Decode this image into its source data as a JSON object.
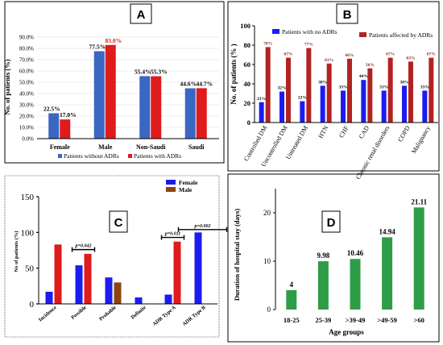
{
  "chart_data": [
    {
      "panel": "A",
      "type": "bar",
      "ylabel": "No. of patients (%)",
      "yticks": [
        "0.0%",
        "10.0%",
        "20.0%",
        "30.0%",
        "40.0%",
        "50.0%",
        "60.0%",
        "70.0%",
        "80.0%",
        "90.0%"
      ],
      "ylim": [
        0,
        90
      ],
      "categories": [
        "Female",
        "Male",
        "Non-Saudi",
        "Saudi"
      ],
      "series": [
        {
          "name": "Patients without ADRs",
          "color": "#3a66c4",
          "values": [
            22.5,
            77.5,
            55.4,
            44.6
          ],
          "labels": [
            "22.5%",
            "77.5%",
            "55.4%",
            "44.6%"
          ]
        },
        {
          "name": "Patients with ADRs",
          "color": "#e01b1b",
          "values": [
            17.0,
            83.0,
            55.3,
            44.7
          ],
          "labels": [
            "17.0%",
            "83.0%",
            "55.3%",
            "44.7%"
          ]
        }
      ],
      "legend_position": "bottom"
    },
    {
      "panel": "B",
      "type": "bar",
      "ylabel": "No. of patients (% )",
      "yticks": [
        "0",
        "20",
        "40",
        "60",
        "80",
        "100"
      ],
      "ylim": [
        0,
        100
      ],
      "categories": [
        "Controlled DM",
        "Uncontrolled DM",
        "Untreated DM",
        "HTN",
        "CHF",
        "CAD",
        "Chronic renal disorders",
        "COPD",
        "Malignancy"
      ],
      "series": [
        {
          "name": "Patients with no ADRs",
          "color": "#1c1cf0",
          "values": [
            21,
            32,
            22,
            38,
            33,
            44,
            33,
            38,
            33
          ],
          "labels": [
            "21%",
            "32%",
            "22%",
            "38%",
            "33%",
            "44%",
            "33%",
            "38%",
            "33%"
          ]
        },
        {
          "name": "Patients affected by ADRs",
          "color": "#b22222",
          "values": [
            78,
            67,
            77,
            61,
            66,
            56,
            67,
            63,
            67
          ],
          "labels": [
            "78%",
            "67%",
            "77%",
            "61%",
            "66%",
            "56%",
            "67%",
            "63%",
            "67%"
          ]
        }
      ],
      "legend_position": "top"
    },
    {
      "panel": "C",
      "type": "bar",
      "ylabel": "No of patients (%)",
      "yticks": [
        "0",
        "50",
        "100",
        "150"
      ],
      "ylim": [
        0,
        150
      ],
      "categories": [
        "Incidence",
        "Possible",
        "Probable",
        "Definite",
        "ADR Type A",
        "ADR Type B"
      ],
      "series": [
        {
          "name": "Female",
          "color": "#1c1cf0",
          "values": [
            17,
            54,
            37,
            9,
            13,
            100
          ]
        },
        {
          "name": "Male",
          "color": "#8b4513",
          "values": [
            83,
            70,
            30,
            0,
            87,
            0
          ]
        },
        {
          "name": "",
          "color": "#e01b1b",
          "values": [
            83,
            70,
            0,
            0,
            87,
            0
          ]
        }
      ],
      "annotations": [
        "p=0.042",
        "p=0.011",
        "p=0.002"
      ],
      "legend_position": "top-right"
    },
    {
      "panel": "D",
      "type": "bar",
      "ylabel": "Duration of hospital stay (days)",
      "xlabel": "Age groups",
      "yticks": [
        "0",
        "10",
        "20"
      ],
      "ylim": [
        0,
        25
      ],
      "categories": [
        "18-25",
        "25-39",
        ">39-49",
        ">49-59",
        ">60"
      ],
      "values": [
        4,
        9.98,
        10.46,
        14.94,
        21.11
      ],
      "labels": [
        "4",
        "9.98",
        "10.46",
        "14.94",
        "21.11"
      ],
      "color": "#2e9d48"
    }
  ]
}
